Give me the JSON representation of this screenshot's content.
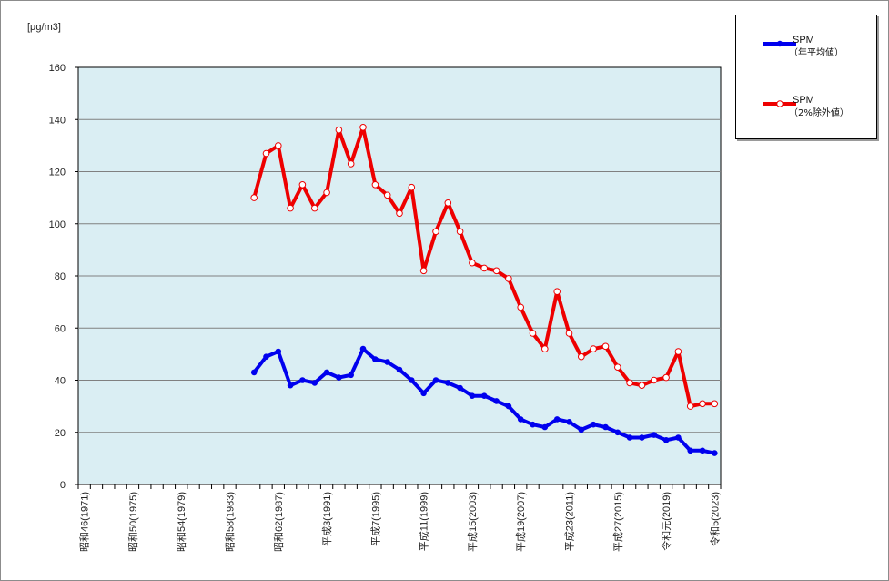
{
  "chart_data": {
    "type": "line",
    "unit_label": "[μg/m3]",
    "ylim": [
      0,
      160
    ],
    "yticks": [
      0,
      20,
      40,
      60,
      80,
      100,
      120,
      140,
      160
    ],
    "grid": true,
    "legend_position": "top-right",
    "x": [
      1971,
      1972,
      1973,
      1974,
      1975,
      1976,
      1977,
      1978,
      1979,
      1980,
      1981,
      1982,
      1983,
      1984,
      1985,
      1986,
      1987,
      1988,
      1989,
      1990,
      1991,
      1992,
      1993,
      1994,
      1995,
      1996,
      1997,
      1998,
      1999,
      2000,
      2001,
      2002,
      2003,
      2004,
      2005,
      2006,
      2007,
      2008,
      2009,
      2010,
      2011,
      2012,
      2013,
      2014,
      2015,
      2016,
      2017,
      2018,
      2019,
      2020,
      2021,
      2022,
      2023
    ],
    "xtick_labels": [
      {
        "x": 1971,
        "label": "昭和46(1971)"
      },
      {
        "x": 1975,
        "label": "昭和50(1975)"
      },
      {
        "x": 1979,
        "label": "昭和54(1979)"
      },
      {
        "x": 1983,
        "label": "昭和58(1983)"
      },
      {
        "x": 1987,
        "label": "昭和62(1987)"
      },
      {
        "x": 1991,
        "label": "平成3(1991)"
      },
      {
        "x": 1995,
        "label": "平成7(1995)"
      },
      {
        "x": 1999,
        "label": "平成11(1999)"
      },
      {
        "x": 2003,
        "label": "平成15(2003)"
      },
      {
        "x": 2007,
        "label": "平成19(2007)"
      },
      {
        "x": 2011,
        "label": "平成23(2011)"
      },
      {
        "x": 2015,
        "label": "平成27(2015)"
      },
      {
        "x": 2019,
        "label": "令和元(2019)"
      },
      {
        "x": 2023,
        "label": "令和5(2023)"
      }
    ],
    "series": [
      {
        "name": "SPM",
        "subtitle": "（年平均値）",
        "color": "#0000ee",
        "marker": "filled-circle",
        "x": [
          1985,
          1986,
          1987,
          1988,
          1989,
          1990,
          1991,
          1992,
          1993,
          1994,
          1995,
          1996,
          1997,
          1998,
          1999,
          2000,
          2001,
          2002,
          2003,
          2004,
          2005,
          2006,
          2007,
          2008,
          2009,
          2010,
          2011,
          2012,
          2013,
          2014,
          2015,
          2016,
          2017,
          2018,
          2019,
          2020,
          2021,
          2022,
          2023
        ],
        "values": [
          43,
          49,
          51,
          38,
          40,
          39,
          43,
          41,
          42,
          52,
          48,
          47,
          44,
          40,
          35,
          40,
          39,
          37,
          34,
          34,
          32,
          30,
          25,
          23,
          22,
          25,
          24,
          21,
          23,
          22,
          20,
          18,
          18,
          19,
          17,
          18,
          13,
          13,
          12
        ]
      },
      {
        "name": "SPM",
        "subtitle": "（2%除外値）",
        "color": "#ee0000",
        "marker": "hollow-circle",
        "x": [
          1985,
          1986,
          1987,
          1988,
          1989,
          1990,
          1991,
          1992,
          1993,
          1994,
          1995,
          1996,
          1997,
          1998,
          1999,
          2000,
          2001,
          2002,
          2003,
          2004,
          2005,
          2006,
          2007,
          2008,
          2009,
          2010,
          2011,
          2012,
          2013,
          2014,
          2015,
          2016,
          2017,
          2018,
          2019,
          2020,
          2021,
          2022,
          2023
        ],
        "values": [
          110,
          127,
          130,
          106,
          115,
          106,
          112,
          136,
          123,
          137,
          115,
          111,
          104,
          114,
          82,
          97,
          108,
          97,
          85,
          83,
          82,
          79,
          68,
          58,
          52,
          74,
          58,
          49,
          52,
          53,
          45,
          39,
          38,
          40,
          41,
          51,
          30,
          31,
          31
        ]
      }
    ]
  }
}
